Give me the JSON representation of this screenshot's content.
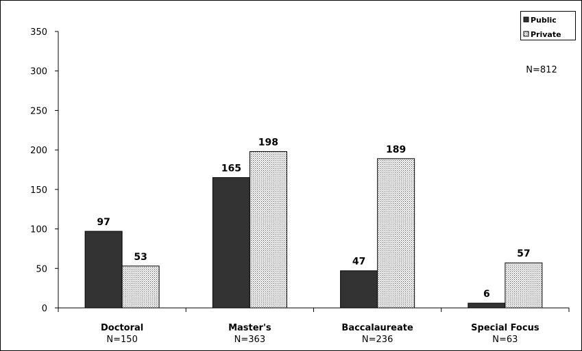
{
  "chart_data": {
    "type": "bar",
    "categories": [
      "Doctoral",
      "Master's",
      "Baccalaureate",
      "Special Focus"
    ],
    "category_counts": [
      "N=150",
      "N=363",
      "N=236",
      "N=63"
    ],
    "series": [
      {
        "name": "Public",
        "values": [
          97,
          165,
          47,
          6
        ],
        "color": "#333333"
      },
      {
        "name": "Private",
        "values": [
          53,
          198,
          189,
          57
        ],
        "color": "#d8d8d8",
        "pattern": "dotted"
      }
    ],
    "ylim": [
      0,
      350
    ],
    "yticks": [
      0,
      50,
      100,
      150,
      200,
      250,
      300,
      350
    ],
    "legend_position": "top-right",
    "annotation": "N=812",
    "grid": false
  }
}
